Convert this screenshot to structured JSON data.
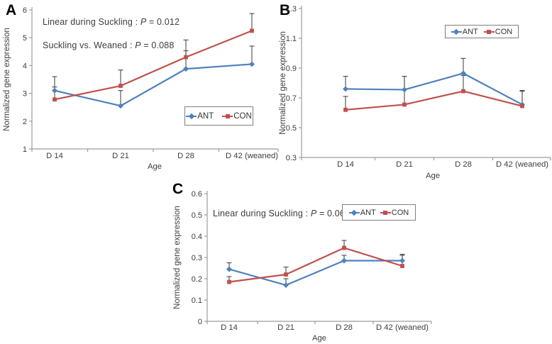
{
  "figure": {
    "background": "#ffffff"
  },
  "colors": {
    "ant": "#4f81bd",
    "con": "#c0504d",
    "error_bar": "#4a4a4a",
    "axis": "#9c9c9c",
    "text": "#3d3d3d",
    "legend_border": "#7f7f7f"
  },
  "chart_data": [
    {
      "id": "A",
      "type": "line",
      "panel_label": "A",
      "xlabel": "Age",
      "ylabel": "Normalized gene expression",
      "categories": [
        "D 14",
        "D 21",
        "D 28",
        "D 42 (weaned)"
      ],
      "ylim": [
        1,
        6
      ],
      "yticks": [
        1,
        2,
        3,
        4,
        5,
        6
      ],
      "ytick_labels": [
        "1",
        "2",
        "3",
        "4",
        "5",
        "6"
      ],
      "grid": false,
      "legend_position": "inside lower right",
      "series": [
        {
          "name": "ANT",
          "color": "#4f81bd",
          "marker": "diamond",
          "values": [
            3.1,
            2.55,
            3.88,
            4.05
          ],
          "errors_plus": [
            0.5,
            0.55,
            0.65,
            0.65
          ]
        },
        {
          "name": "CON",
          "color": "#c0504d",
          "marker": "square",
          "values": [
            2.78,
            3.27,
            4.3,
            5.25
          ],
          "errors_plus": [
            0.45,
            0.57,
            0.62,
            0.62
          ]
        }
      ],
      "annotations": [
        {
          "before": "Linear during Suckling : ",
          "p": "P",
          "after": " = 0.012"
        },
        {
          "before": "Suckling vs. Weaned : ",
          "p": "P",
          "after": " = 0.088"
        }
      ]
    },
    {
      "id": "B",
      "type": "line",
      "panel_label": "B",
      "xlabel": "Age",
      "ylabel": "Normalized gene expression",
      "categories": [
        "D 14",
        "D 21",
        "D 28",
        "D 42 (weaned)"
      ],
      "ylim": [
        0.3,
        1.3
      ],
      "yticks": [
        0.3,
        0.5,
        0.7,
        0.9,
        1.1,
        1.3
      ],
      "ytick_labels": [
        "0.3",
        "0.5",
        "0.7",
        "0.9",
        "1.1",
        "1.3"
      ],
      "grid": false,
      "legend_position": "inside upper right",
      "series": [
        {
          "name": "ANT",
          "color": "#4f81bd",
          "marker": "diamond",
          "values": [
            0.76,
            0.755,
            0.865,
            0.655
          ],
          "errors_plus": [
            0.085,
            0.09,
            0.1,
            0.095
          ]
        },
        {
          "name": "CON",
          "color": "#c0504d",
          "marker": "square",
          "values": [
            0.62,
            0.655,
            0.745,
            0.645
          ],
          "errors_plus": [
            0.09,
            0.19,
            0.105,
            0.1
          ]
        }
      ],
      "annotations": []
    },
    {
      "id": "C",
      "type": "line",
      "panel_label": "C",
      "xlabel": "Age",
      "ylabel": "Normalized gene expression",
      "categories": [
        "D 14",
        "D 21",
        "D 28",
        "D 42 (weaned)"
      ],
      "ylim": [
        0,
        0.6
      ],
      "yticks": [
        0,
        0.1,
        0.2,
        0.3,
        0.4,
        0.5,
        0.6
      ],
      "ytick_labels": [
        "0",
        "0.1",
        "0.2",
        "0.3",
        "0.4",
        "0.5",
        "0.6"
      ],
      "grid": false,
      "legend_position": "inside upper right",
      "series": [
        {
          "name": "ANT",
          "color": "#4f81bd",
          "marker": "diamond",
          "values": [
            0.245,
            0.17,
            0.285,
            0.285
          ],
          "errors_plus": [
            0.03,
            0.03,
            0.025,
            0.03
          ]
        },
        {
          "name": "CON",
          "color": "#c0504d",
          "marker": "square",
          "values": [
            0.185,
            0.22,
            0.345,
            0.26
          ],
          "errors_plus": [
            0.025,
            0.035,
            0.035,
            0.05
          ]
        }
      ],
      "annotations": [
        {
          "before": "Linear during Suckling : ",
          "p": "P",
          "after": " = 0.062"
        }
      ]
    }
  ]
}
